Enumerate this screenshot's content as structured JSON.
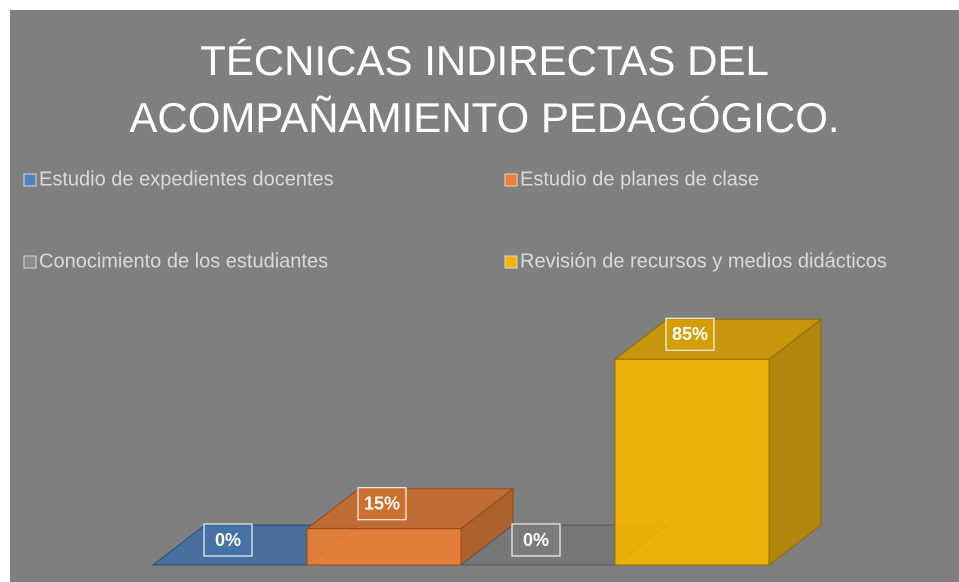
{
  "chart_data": {
    "type": "bar3d",
    "title": "TÉCNICAS INDIRECTAS DEL ACOMPAÑAMIENTO PEDAGÓGICO.",
    "legend": "top",
    "series": [
      {
        "name": "Estudio de expedientes docentes",
        "color": "#4f81bd",
        "values": [
          0
        ],
        "value_labels": [
          "0%"
        ]
      },
      {
        "name": "Estudio de planes de clase",
        "color": "#ed7d31",
        "values": [
          15
        ],
        "value_labels": [
          "15%"
        ]
      },
      {
        "name": "Conocimiento de los estudiantes",
        "color": "#8c8c8c",
        "values": [
          0
        ],
        "value_labels": [
          "0%"
        ]
      },
      {
        "name": "Revisión de recursos y medios didácticos",
        "color": "#f4b400",
        "values": [
          85
        ],
        "value_labels": [
          "85%"
        ]
      }
    ]
  }
}
